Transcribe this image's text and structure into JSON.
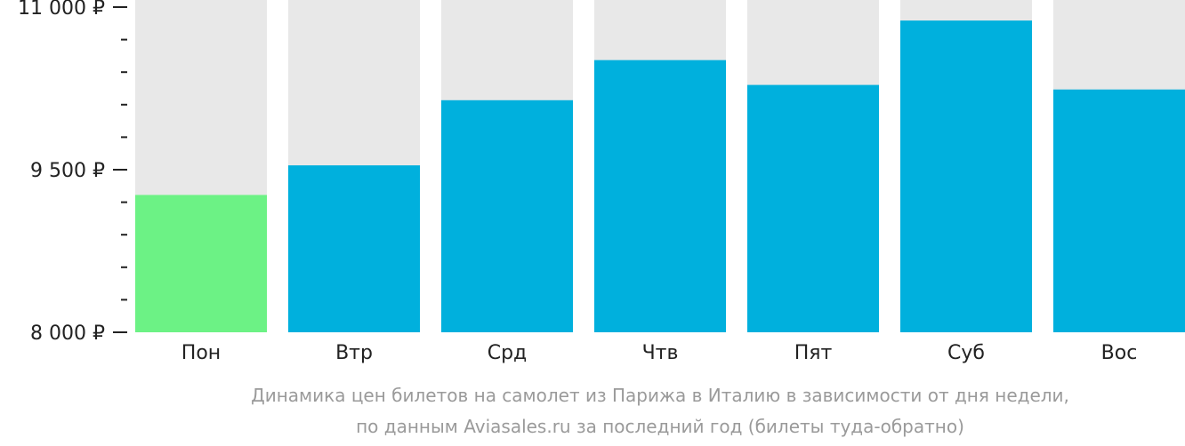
{
  "chart_data": {
    "type": "bar",
    "categories": [
      "Пон",
      "Втр",
      "Срд",
      "Чтв",
      "Пят",
      "Суб",
      "Вос"
    ],
    "values": [
      9267,
      9540,
      10141,
      10511,
      10282,
      10876,
      10240
    ],
    "highlight_index": 0,
    "ylim": [
      8000,
      11000
    ],
    "yticks": [
      {
        "value": 11000,
        "label": "11 000 ₽"
      },
      {
        "value": 9500,
        "label": "9 500 ₽"
      },
      {
        "value": 8000,
        "label": "8 000 ₽"
      }
    ],
    "minor_tick_step": 300,
    "grid": false,
    "caption": [
      "Динамика цен билетов на самолет из Парижа в Италию в зависимости от дня недели,",
      "по данным Aviasales.ru за последний год (билеты туда-обратно)"
    ]
  },
  "colors": {
    "bar": "#00b0dd",
    "highlight": "#6cf285",
    "track": "#e8e8e8",
    "axis": "#222222",
    "caption": "#9a9a9a"
  }
}
